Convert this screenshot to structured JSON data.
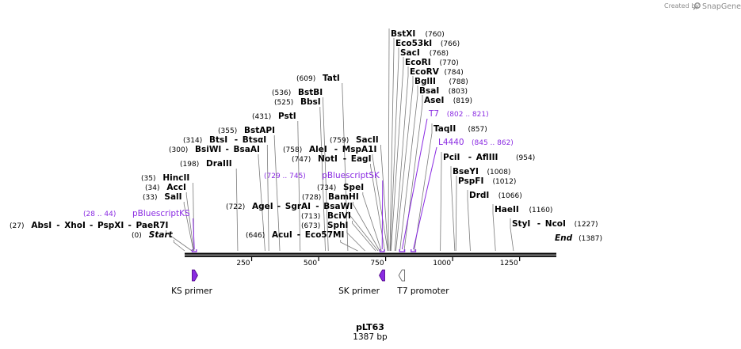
{
  "map": {
    "name": "pLT63",
    "length_label": "1387 bp",
    "seq_length": 1387,
    "ticks": [
      "250",
      "500",
      "750",
      "1000",
      "1250"
    ]
  },
  "branding": {
    "created_by": "Created by",
    "app": "SnapGene"
  },
  "colors": {
    "primer": "#8a2be2",
    "line": "#000000",
    "feature_fill": "#ffffff"
  },
  "left_labels": [
    {
      "pos": 0,
      "pos_text": "(0)",
      "names": [
        "Start"
      ],
      "italic": true
    },
    {
      "pos": 27,
      "pos_text": "(27)",
      "names": [
        "AbsI",
        "XhoI",
        "PspXI",
        "PaeR7I"
      ]
    },
    {
      "pos": 33,
      "pos_text": "(33)",
      "names": [
        "SalI"
      ]
    },
    {
      "pos": 34,
      "pos_text": "(34)",
      "names": [
        "AccI"
      ]
    },
    {
      "pos": 35,
      "pos_text": "(35)",
      "names": [
        "HincII"
      ]
    },
    {
      "pos": 198,
      "pos_text": "(198)",
      "names": [
        "DraIII"
      ]
    },
    {
      "pos": 300,
      "pos_text": "(300)",
      "names": [
        "BsiWI",
        "BsaAI"
      ]
    },
    {
      "pos": 314,
      "pos_text": "(314)",
      "names": [
        "BtsI",
        "BtsαI"
      ]
    },
    {
      "pos": 355,
      "pos_text": "(355)",
      "names": [
        "BstAPI"
      ]
    },
    {
      "pos": 431,
      "pos_text": "(431)",
      "names": [
        "PstI"
      ]
    },
    {
      "pos": 525,
      "pos_text": "(525)",
      "names": [
        "BbsI"
      ]
    },
    {
      "pos": 536,
      "pos_text": "(536)",
      "names": [
        "BstBI"
      ]
    },
    {
      "pos": 609,
      "pos_text": "(609)",
      "names": [
        "TatI"
      ]
    },
    {
      "pos": 646,
      "pos_text": "(646)",
      "names": [
        "AcuI",
        "Eco57MI"
      ]
    },
    {
      "pos": 673,
      "pos_text": "(673)",
      "names": [
        "SphI"
      ]
    },
    {
      "pos": 713,
      "pos_text": "(713)",
      "names": [
        "BciVI"
      ]
    },
    {
      "pos": 722,
      "pos_text": "(722)",
      "names": [
        "AgeI",
        "SgrAI",
        "BsaWI"
      ]
    },
    {
      "pos": 728,
      "pos_text": "(728)",
      "names": [
        "BamHI"
      ]
    },
    {
      "pos": 734,
      "pos_text": "(734)",
      "names": [
        "SpeI"
      ]
    },
    {
      "pos": 747,
      "pos_text": "(747)",
      "names": [
        "NotI",
        "EagI"
      ]
    },
    {
      "pos": 758,
      "pos_text": "(758)",
      "names": [
        "AleI",
        "MspA1I"
      ]
    },
    {
      "pos": 759,
      "pos_text": "(759)",
      "names": [
        "SacII"
      ]
    }
  ],
  "right_labels": [
    {
      "pos": 760,
      "pos_text": "(760)",
      "names": [
        "BstXI"
      ]
    },
    {
      "pos": 766,
      "pos_text": "(766)",
      "names": [
        "Eco53kI"
      ]
    },
    {
      "pos": 768,
      "pos_text": "(768)",
      "names": [
        "SacI"
      ]
    },
    {
      "pos": 770,
      "pos_text": "(770)",
      "names": [
        "EcoRI"
      ]
    },
    {
      "pos": 784,
      "pos_text": "(784)",
      "names": [
        "EcoRV"
      ]
    },
    {
      "pos": 788,
      "pos_text": "(788)",
      "names": [
        "BglII"
      ]
    },
    {
      "pos": 803,
      "pos_text": "(803)",
      "names": [
        "BsaI"
      ]
    },
    {
      "pos": 819,
      "pos_text": "(819)",
      "names": [
        "AseI"
      ]
    },
    {
      "pos": 857,
      "pos_text": "(857)",
      "names": [
        "TaqII"
      ]
    },
    {
      "pos": 954,
      "pos_text": "(954)",
      "names": [
        "PciI",
        "AflIII"
      ]
    },
    {
      "pos": 1008,
      "pos_text": "(1008)",
      "names": [
        "BseYI"
      ]
    },
    {
      "pos": 1012,
      "pos_text": "(1012)",
      "names": [
        "PspFI"
      ]
    },
    {
      "pos": 1066,
      "pos_text": "(1066)",
      "names": [
        "DrdI"
      ]
    },
    {
      "pos": 1160,
      "pos_text": "(1160)",
      "names": [
        "HaeII"
      ]
    },
    {
      "pos": 1227,
      "pos_text": "(1227)",
      "names": [
        "StyI",
        "NcoI"
      ]
    },
    {
      "pos": 1387,
      "pos_text": "(1387)",
      "names": [
        "End"
      ],
      "italic": true
    }
  ],
  "primer_sites": [
    {
      "name": "pBluescriptKS",
      "range_text": "(28 .. 44)",
      "start": 28,
      "end": 44
    },
    {
      "name": "pBluescriptSK",
      "range_text": "(729 .. 745)",
      "start": 729,
      "end": 745
    },
    {
      "name": "T7",
      "range_text": "(802 .. 821)",
      "start": 802,
      "end": 821
    },
    {
      "name": "L4440",
      "range_text": "(845 .. 862)",
      "start": 845,
      "end": 862
    }
  ],
  "features": [
    {
      "name": "KS primer",
      "start": 28,
      "end": 44,
      "direction": "forward",
      "filled": true
    },
    {
      "name": "SK primer",
      "start": 729,
      "end": 745,
      "direction": "reverse",
      "filled": true
    },
    {
      "name": "T7 promoter",
      "start": 802,
      "end": 821,
      "direction": "reverse",
      "filled": false
    }
  ]
}
